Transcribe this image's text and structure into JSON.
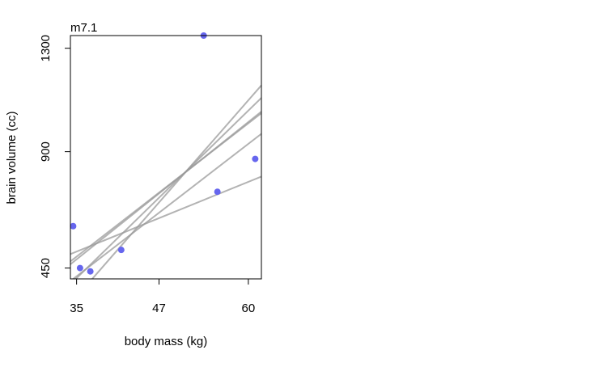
{
  "chart_data": {
    "type": "scatter",
    "title": "m7.1",
    "xlabel": "body mass (kg)",
    "ylabel": "brain volume (cc)",
    "xlim": [
      34.1,
      61.9
    ],
    "ylim": [
      408,
      1349
    ],
    "x_ticks": [
      {
        "value": 35,
        "label": "35"
      },
      {
        "value": 47,
        "label": "47"
      },
      {
        "value": 60,
        "label": "60"
      }
    ],
    "y_ticks": [
      {
        "value": 450,
        "label": "450"
      },
      {
        "value": 900,
        "label": "900"
      },
      {
        "value": 1300,
        "label": "1300"
      }
    ],
    "point_color": "#6666ee",
    "line_color": "#999999",
    "points": [
      {
        "x": 34.5,
        "y": 612
      },
      {
        "x": 35.5,
        "y": 450
      },
      {
        "x": 37.0,
        "y": 437
      },
      {
        "x": 41.5,
        "y": 520
      },
      {
        "x": 53.5,
        "y": 1349
      },
      {
        "x": 55.5,
        "y": 745
      },
      {
        "x": 61.0,
        "y": 872
      }
    ],
    "fitted_lines": [
      {
        "intercept": -299.2,
        "slope": 20.49
      },
      {
        "intercept": -227.5,
        "slope": 20.62
      },
      {
        "intercept": -259.8,
        "slope": 21.24
      },
      {
        "intercept": -496.3,
        "slope": 25.92
      },
      {
        "intercept": -725.2,
        "slope": 30.4
      },
      {
        "intercept": 135.8,
        "slope": 10.79
      }
    ]
  }
}
